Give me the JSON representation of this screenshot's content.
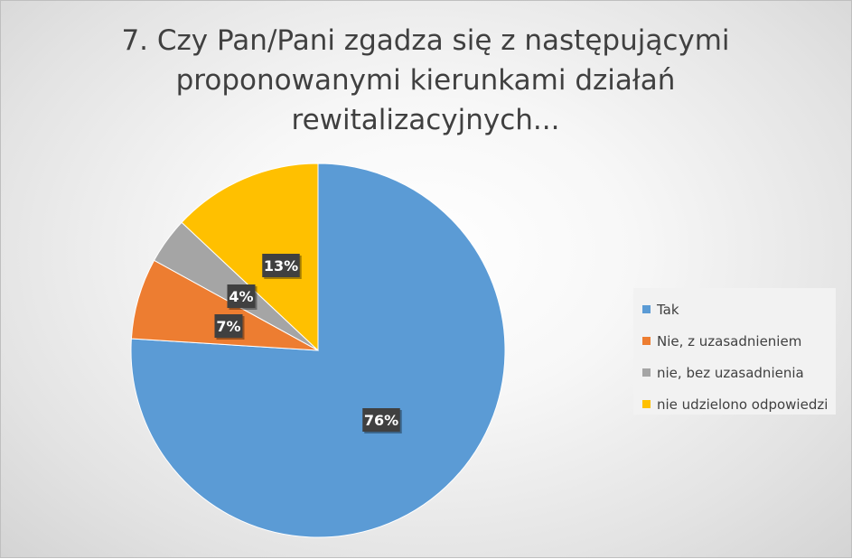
{
  "chart_data": {
    "type": "pie",
    "title": "7.  Czy Pan/Pani zgadza się z następującymi proponowanymi kierunkami działań rewitalizacyjnych...",
    "title_lines": [
      "7.  Czy Pan/Pani zgadza się z następującymi",
      "proponowanymi kierunkami działań",
      "rewitalizacyjnych..."
    ],
    "categories": [
      "Tak",
      "Nie, z uzasadnieniem",
      "nie, bez uzasadnienia",
      "nie udzielono odpowiedzi"
    ],
    "values": [
      76,
      7,
      4,
      13
    ],
    "data_labels": [
      "76%",
      "7%",
      "4%",
      "13%"
    ],
    "colors": [
      "#5b9bd5",
      "#ed7d31",
      "#a5a5a5",
      "#ffc000"
    ],
    "legend_position": "right",
    "unit": "%"
  }
}
